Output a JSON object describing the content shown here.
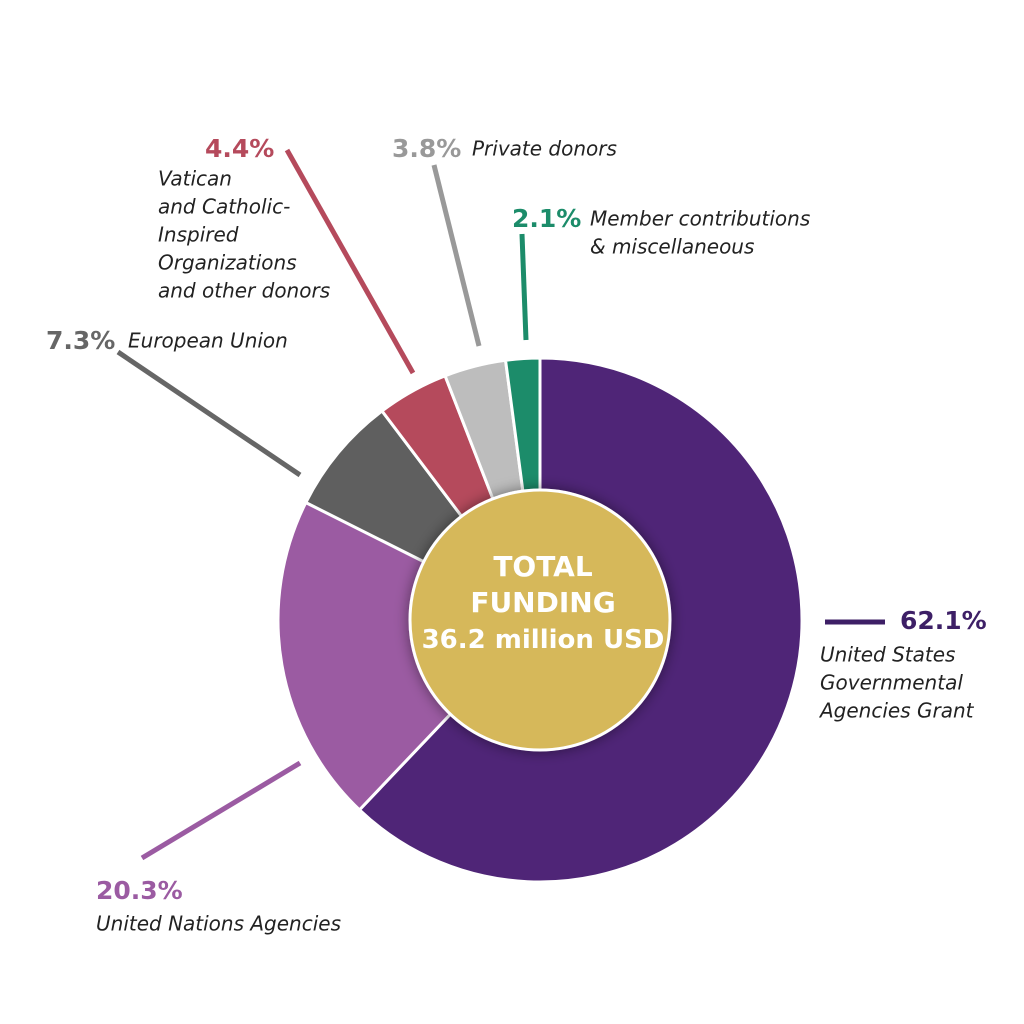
{
  "chart_data": {
    "type": "pie",
    "title": "",
    "center": {
      "line1": "TOTAL",
      "line2": "FUNDING",
      "line3": "36.2 million USD",
      "color": "#d6b85a"
    },
    "slices": [
      {
        "name": "United States Governmental Agencies Grant",
        "label_lines": [
          "United States",
          "Governmental",
          "Agencies Grant"
        ],
        "percent_label": "62.1%",
        "value": 62.1,
        "color": "#4f2577",
        "label_color": "#3d1f66"
      },
      {
        "name": "United Nations Agencies",
        "label_lines": [
          "United Nations Agencies"
        ],
        "percent_label": "20.3%",
        "value": 20.3,
        "color": "#9b5ba2",
        "label_color": "#9b5ba2"
      },
      {
        "name": "European Union",
        "label_lines": [
          "European Union"
        ],
        "percent_label": "7.3%",
        "value": 7.3,
        "color": "#5f5f5f",
        "label_color": "#666666"
      },
      {
        "name": "Vatican and Catholic-Inspired Organizations and other donors",
        "label_lines": [
          "Vatican",
          "and Catholic-",
          "Inspired",
          "Organizations",
          "and other donors"
        ],
        "percent_label": "4.4%",
        "value": 4.4,
        "color": "#b54a5c",
        "label_color": "#b54a5c"
      },
      {
        "name": "Private donors",
        "label_lines": [
          "Private donors"
        ],
        "percent_label": "3.8%",
        "value": 3.8,
        "color": "#bdbdbd",
        "label_color": "#999999"
      },
      {
        "name": "Member contributions & miscellaneous",
        "label_lines": [
          "Member contributions",
          "& miscellaneous"
        ],
        "percent_label": "2.1%",
        "value": 2.1,
        "color": "#1c8c6a",
        "label_color": "#1c8c6a"
      }
    ]
  }
}
